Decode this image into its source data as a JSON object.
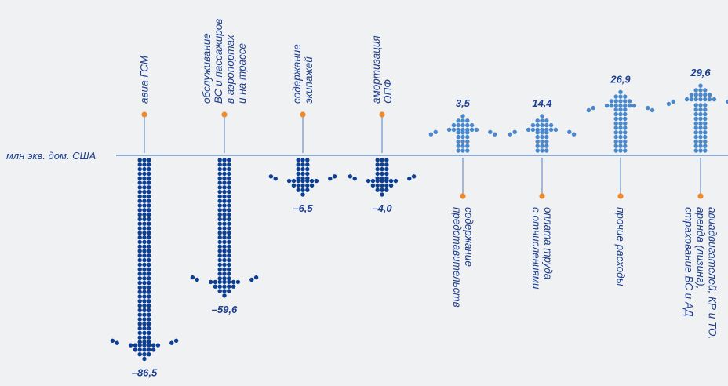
{
  "chart_data": {
    "type": "bar",
    "title": "",
    "unit_label": "млн экв. дом. США",
    "series": [
      {
        "name": "",
        "values": [
          -86.5,
          -59.6,
          -6.5,
          -4.0,
          3.5,
          14.4,
          26.9,
          29.6
        ]
      }
    ],
    "values": [
      -86.5,
      -59.6,
      -6.5,
      -4.0,
      3.5,
      14.4,
      26.9,
      29.6
    ],
    "value_labels": [
      "–86,5",
      "–59,6",
      "–6,5",
      "–4,0",
      "3,5",
      "14,4",
      "26,9",
      "29,6"
    ],
    "categories": [
      [
        "авиа ГСМ"
      ],
      [
        "обслуживание",
        "ВС и пассажиров",
        "в аэропортах",
        "и на трассе"
      ],
      [
        "содержание",
        "экипажей"
      ],
      [
        "амортизация",
        "ОПФ"
      ],
      [
        "содержание",
        "представительств"
      ],
      [
        "оплата труда",
        "с отчислениями"
      ],
      [
        "прочие расходы"
      ],
      [
        "авиадвигателей, КР и ТО,",
        "аренда (лизинг),",
        "страхование ВС и АД"
      ]
    ],
    "colors": {
      "negative": "#0d3f91",
      "positive": "#4a88c9",
      "marker": "#ee8a2c",
      "axis": "#6d92c4",
      "text": "#1d3f8f",
      "background": "#f0f1f3"
    }
  }
}
